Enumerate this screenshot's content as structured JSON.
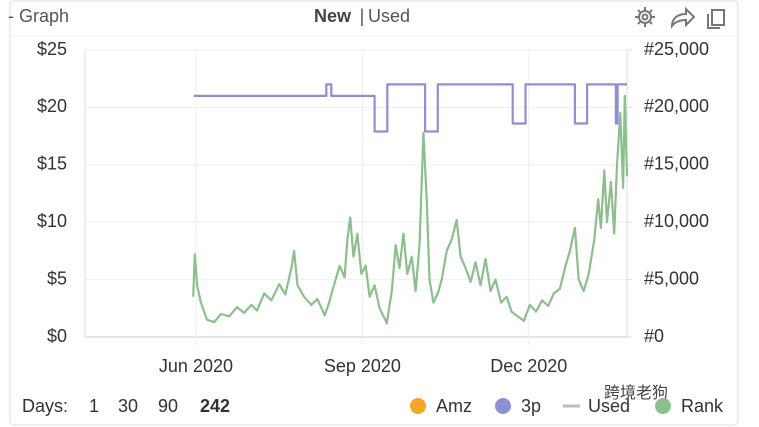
{
  "header": {
    "title": "- Graph",
    "new": "New",
    "separator": "|",
    "used": "Used"
  },
  "controls": {
    "days_label": "Days:",
    "days": [
      "1",
      "30",
      "90",
      "242"
    ]
  },
  "watermark": "跨境老狗",
  "chart_data": {
    "type": "line",
    "xlim": [
      0,
      9.77
    ],
    "xticks": [
      {
        "value": 2,
        "label": "Jun 2020"
      },
      {
        "value": 5,
        "label": "Sep 2020"
      },
      {
        "value": 8,
        "label": "Dec 2020"
      }
    ],
    "ylim": [
      0,
      25
    ],
    "yticks": [
      {
        "value": 0,
        "label": "$0"
      },
      {
        "value": 5,
        "label": "$5"
      },
      {
        "value": 10,
        "label": "$10"
      },
      {
        "value": 15,
        "label": "$15"
      },
      {
        "value": 20,
        "label": "$20"
      },
      {
        "value": 25,
        "label": "$25"
      }
    ],
    "y2lim": [
      0,
      25000
    ],
    "y2ticks": [
      {
        "value": 0,
        "label": "#0"
      },
      {
        "value": 5000,
        "label": "#5,000"
      },
      {
        "value": 10000,
        "label": "#10,000"
      },
      {
        "value": 15000,
        "label": "#15,000"
      },
      {
        "value": 20000,
        "label": "#20,000"
      },
      {
        "value": 25000,
        "label": "#25,000"
      }
    ],
    "grid": true,
    "series": [
      {
        "name": "Amz",
        "color": "#f5a623",
        "legend_marker": "dot",
        "x": [],
        "values": []
      },
      {
        "name": "3p",
        "color": "#8f8fd6",
        "legend_marker": "dot",
        "x": [
          1.96,
          4.35,
          4.35,
          4.44,
          4.44,
          5.22,
          5.22,
          5.45,
          5.45,
          6.13,
          6.13,
          6.36,
          6.36,
          7.71,
          7.71,
          7.94,
          7.94,
          8.83,
          8.83,
          9.05,
          9.05,
          9.57,
          9.57,
          9.6,
          9.6,
          9.77
        ],
        "values": [
          21,
          21,
          22,
          22,
          21,
          21,
          17.9,
          17.9,
          22,
          22,
          17.9,
          17.9,
          22,
          22,
          18.6,
          18.6,
          22,
          22,
          18.6,
          18.6,
          22,
          22,
          18.6,
          18.6,
          22,
          22
        ]
      },
      {
        "name": "Used",
        "color": "#bbbbbb",
        "legend_marker": "line",
        "x": [],
        "values": []
      },
      {
        "name": "Rank",
        "color": "#8bbf8b",
        "legend_marker": "dot",
        "axis": "y2",
        "x": [
          1.95,
          1.98,
          2.02,
          2.09,
          2.2,
          2.33,
          2.45,
          2.6,
          2.74,
          2.87,
          3.0,
          3.1,
          3.23,
          3.36,
          3.5,
          3.61,
          3.72,
          3.77,
          3.83,
          3.95,
          4.08,
          4.19,
          4.32,
          4.4,
          4.5,
          4.59,
          4.68,
          4.73,
          4.78,
          4.84,
          4.91,
          4.98,
          5.06,
          5.13,
          5.22,
          5.31,
          5.38,
          5.44,
          5.53,
          5.6,
          5.67,
          5.74,
          5.81,
          5.89,
          5.96,
          6.03,
          6.1,
          6.16,
          6.21,
          6.28,
          6.36,
          6.43,
          6.52,
          6.61,
          6.7,
          6.77,
          6.86,
          6.95,
          7.04,
          7.13,
          7.22,
          7.31,
          7.4,
          7.5,
          7.6,
          7.69,
          7.8,
          7.91,
          8.02,
          8.13,
          8.24,
          8.35,
          8.45,
          8.56,
          8.65,
          8.74,
          8.83,
          8.9,
          8.99,
          9.08,
          9.18,
          9.25,
          9.3,
          9.36,
          9.41,
          9.48,
          9.54,
          9.59,
          9.65,
          9.7,
          9.73,
          9.77
        ],
        "values": [
          3500,
          7200,
          4500,
          3000,
          1500,
          1300,
          2000,
          1800,
          2600,
          2100,
          2800,
          2300,
          3800,
          3200,
          4600,
          3700,
          6000,
          7500,
          4500,
          3500,
          2800,
          3300,
          1900,
          3000,
          4700,
          6200,
          5200,
          8500,
          10400,
          7000,
          9000,
          5500,
          6200,
          3500,
          4500,
          2500,
          1800,
          1200,
          4000,
          8000,
          6000,
          9000,
          5500,
          7000,
          4000,
          8000,
          17800,
          12000,
          5000,
          3000,
          3800,
          5000,
          7500,
          8500,
          10200,
          7000,
          6000,
          4800,
          6500,
          4500,
          6800,
          4000,
          5000,
          3000,
          3500,
          2200,
          1800,
          1400,
          2800,
          2200,
          3200,
          2700,
          3800,
          4200,
          6000,
          7500,
          9500,
          5000,
          4000,
          5500,
          8500,
          12000,
          9500,
          14500,
          10000,
          13500,
          9000,
          15000,
          19500,
          13000,
          21000,
          14000
        ]
      }
    ]
  }
}
